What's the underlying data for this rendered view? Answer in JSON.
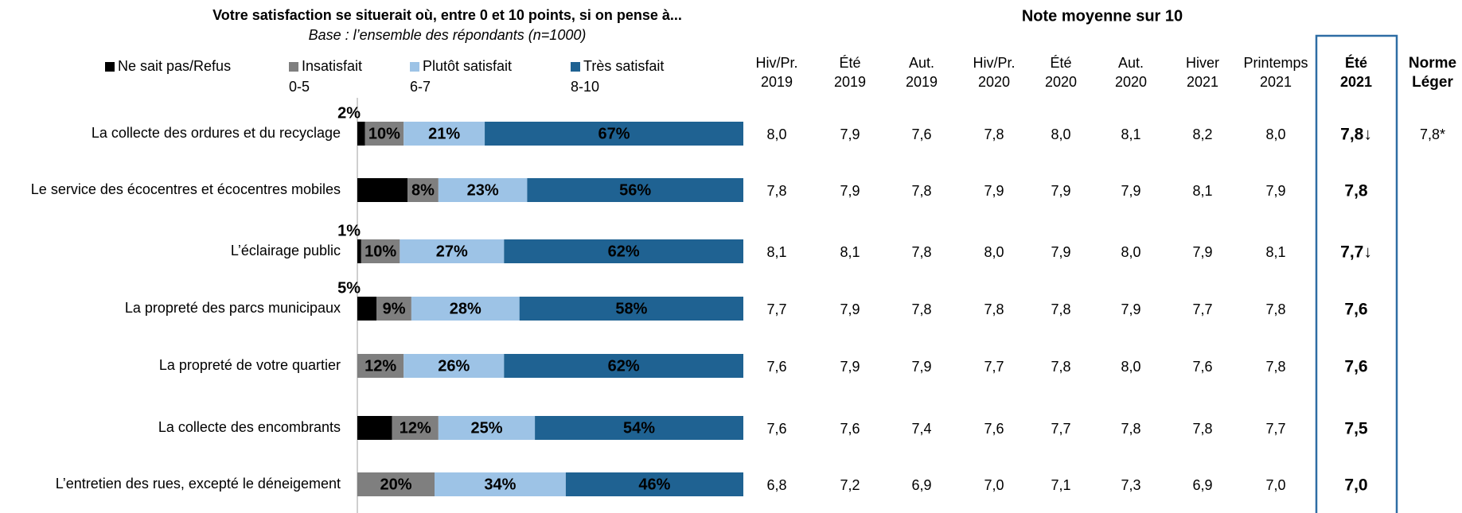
{
  "chart_data": {
    "type": "bar",
    "stacked": true,
    "orientation": "horizontal",
    "title": "Votre satisfaction se situerait où, entre 0 et 10 points, si on pense à...",
    "subtitle": "Base : l’ensemble des répondants (n=1000)",
    "categories": [
      "La collecte des ordures et du recyclage",
      "Le service des écocentres et écocentres mobiles",
      "L’éclairage public",
      "La propreté des parcs municipaux",
      "La propreté de votre quartier",
      "La collecte des encombrants",
      "L’entretien des rues, excepté le déneigement"
    ],
    "xlim": [
      0,
      100
    ],
    "series": [
      {
        "name": "Ne sait pas/Refus",
        "color": "#000000",
        "values": [
          2,
          13,
          1,
          5,
          0,
          9,
          0
        ],
        "value_labels": [
          "2%",
          "13%",
          "1%",
          "5%",
          null,
          "9%",
          null
        ]
      },
      {
        "name": "Insatisfait",
        "sublabel": "0-5",
        "color": "#7f7f7f",
        "values": [
          10,
          8,
          10,
          9,
          12,
          12,
          20
        ],
        "value_labels": [
          "10%",
          "8%",
          "10%",
          "9%",
          "12%",
          "12%",
          "20%"
        ]
      },
      {
        "name": "Plutôt satisfait",
        "sublabel": "6-7",
        "color": "#9dc3e6",
        "values": [
          21,
          23,
          27,
          28,
          26,
          25,
          34
        ],
        "value_labels": [
          "21%",
          "23%",
          "27%",
          "28%",
          "26%",
          "25%",
          "34%"
        ]
      },
      {
        "name": "Très satisfait",
        "sublabel": "8-10",
        "color": "#1f6292",
        "values": [
          67,
          56,
          62,
          58,
          62,
          54,
          46
        ],
        "value_labels": [
          "67%",
          "56%",
          "62%",
          "58%",
          "62%",
          "54%",
          "46%"
        ]
      }
    ]
  },
  "table": {
    "title": "Note moyenne sur 10",
    "columns": [
      [
        "Hiv/Pr.",
        "2019"
      ],
      [
        "Été",
        "2019"
      ],
      [
        "Aut.",
        "2019"
      ],
      [
        "Hiv/Pr.",
        "2020"
      ],
      [
        "Été",
        "2020"
      ],
      [
        "Aut.",
        "2020"
      ],
      [
        "Hiver",
        "2021"
      ],
      [
        "Printemps",
        "2021"
      ],
      [
        "Été",
        "2021"
      ],
      [
        "Norme",
        "Léger"
      ]
    ],
    "highlight_column": 8,
    "rows": [
      [
        "8,0",
        "7,9",
        "7,6",
        "7,8",
        "8,0",
        "8,1",
        "8,2",
        "8,0",
        "7,8↓",
        "7,8*"
      ],
      [
        "7,8",
        "7,9",
        "7,8",
        "7,9",
        "7,9",
        "7,9",
        "8,1",
        "7,9",
        "7,8",
        null
      ],
      [
        "8,1",
        "8,1",
        "7,8",
        "8,0",
        "7,9",
        "8,0",
        "7,9",
        "8,1",
        "7,7↓",
        null
      ],
      [
        "7,7",
        "7,9",
        "7,8",
        "7,8",
        "7,8",
        "7,9",
        "7,7",
        "7,8",
        "7,6",
        null
      ],
      [
        "7,6",
        "7,9",
        "7,9",
        "7,7",
        "7,8",
        "8,0",
        "7,6",
        "7,8",
        "7,6",
        null
      ],
      [
        "7,6",
        "7,6",
        "7,4",
        "7,6",
        "7,7",
        "7,8",
        "7,8",
        "7,7",
        "7,5",
        null
      ],
      [
        "6,8",
        "7,2",
        "6,9",
        "7,0",
        "7,1",
        "7,3",
        "6,9",
        "7,0",
        "7,0",
        null
      ]
    ]
  }
}
